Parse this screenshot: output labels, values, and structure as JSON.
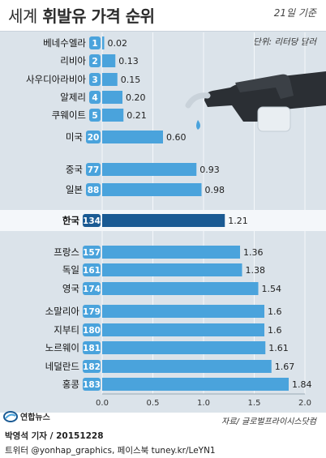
{
  "header": {
    "title_prefix": "세계",
    "title_main": "휘발유 가격 순위",
    "date": "21일 기준",
    "unit": "단위: 리터당 달러"
  },
  "footer": {
    "source": "자료/ 글로벌프라이시스닷컴",
    "logo_text": "연합뉴스",
    "byline": "박영석 기자 / 20151228",
    "social": "트위터 @yonhap_graphics, 페이스북 tuney.kr/LeYN1"
  },
  "colors": {
    "bar": "#4aa3dc",
    "highlight_bar": "#1a5a93",
    "rank_badge": "#4aa3dc",
    "highlight_badge": "#1a5a93",
    "background": "#dbe3ea"
  },
  "chart_data": {
    "type": "bar",
    "orientation": "horizontal",
    "xlim": [
      0,
      2.0
    ],
    "x_ticks": [
      "0.0",
      "0.5",
      "1.0",
      "1.5",
      "2.0"
    ],
    "grid": true,
    "highlight": "한국",
    "categories": [
      "베네수엘라",
      "리비아",
      "사우디아라비아",
      "알제리",
      "쿠웨이트",
      "미국",
      "중국",
      "일본",
      "한국",
      "프랑스",
      "독일",
      "영국",
      "소말리아",
      "지부티",
      "노르웨이",
      "네덜란드",
      "홍콩"
    ],
    "ranks": [
      "1",
      "2",
      "3",
      "4",
      "5",
      "20",
      "77",
      "88",
      "134",
      "157",
      "161",
      "174",
      "179",
      "180",
      "181",
      "182",
      "183"
    ],
    "values": [
      0.02,
      0.13,
      0.15,
      0.2,
      0.21,
      0.6,
      0.93,
      0.98,
      1.21,
      1.36,
      1.38,
      1.54,
      1.6,
      1.6,
      1.61,
      1.67,
      1.84
    ],
    "value_labels": [
      "0.02",
      "0.13",
      "0.15",
      "0.20",
      "0.21",
      "0.60",
      "0.93",
      "0.98",
      "1.21",
      "1.36",
      "1.38",
      "1.54",
      "1.6",
      "1.6",
      "1.61",
      "1.67",
      "1.84"
    ]
  }
}
